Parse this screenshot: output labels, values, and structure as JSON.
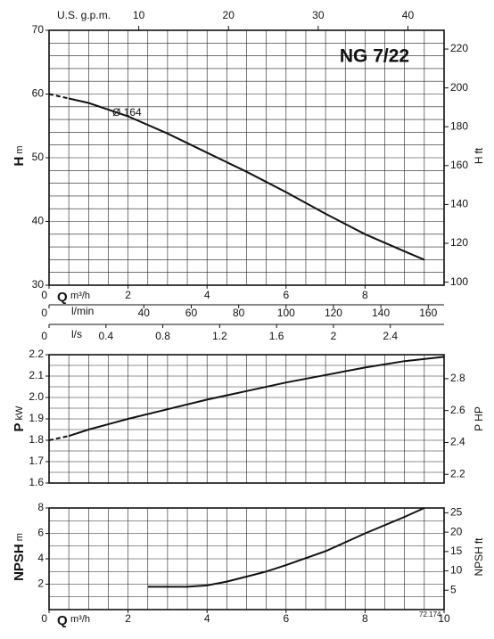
{
  "chart_data": [
    {
      "type": "line",
      "title": "NG 7/22",
      "curve_label": "Ø 164",
      "ylabel": "H",
      "yunit": "m",
      "y2label": "H",
      "y2unit": "ft",
      "xlim": [
        0,
        10
      ],
      "ylim": [
        30,
        70
      ],
      "yticks": [
        30,
        40,
        50,
        60,
        70
      ],
      "y2lim": [
        98.43,
        229.66
      ],
      "y2ticks": [
        100,
        120,
        140,
        160,
        180,
        200,
        220
      ],
      "grid": {
        "x": 0.5,
        "y": 2
      },
      "top_axis": {
        "label": "U.S. g.p.m.",
        "lim": [
          0,
          44.03
        ],
        "ticks": [
          10,
          20,
          30,
          40
        ]
      },
      "q_axes": [
        {
          "symbol": "Q",
          "unit": "m³/h",
          "lim": [
            0,
            10
          ],
          "ticks": [
            0,
            2,
            4,
            6,
            8
          ]
        },
        {
          "unit": "l/min",
          "lim": [
            0,
            166.67
          ],
          "ticks": [
            0,
            40,
            60,
            80,
            100,
            120,
            140,
            160
          ]
        },
        {
          "unit": "l/s",
          "lim": [
            0,
            2.778
          ],
          "ticks": [
            0,
            0.4,
            0.8,
            1.2,
            1.6,
            2,
            2.4
          ]
        }
      ],
      "series": [
        {
          "dash": true,
          "color": "#111111",
          "x": [
            0,
            0.5
          ],
          "values": [
            60,
            59.3
          ]
        },
        {
          "color": "#111111",
          "x": [
            0.5,
            1,
            2,
            3,
            4,
            5,
            6,
            7,
            8,
            9,
            9.5
          ],
          "values": [
            59.3,
            58.6,
            56.5,
            53.8,
            50.8,
            47.8,
            44.6,
            41.2,
            38.0,
            35.3,
            34.0
          ]
        }
      ]
    },
    {
      "type": "line",
      "ylabel": "P",
      "yunit": "kW",
      "y2label": "P",
      "y2unit": "HP",
      "xlim": [
        0,
        10
      ],
      "ylim": [
        1.6,
        2.2
      ],
      "yticks": [
        1.6,
        1.7,
        1.8,
        1.9,
        {
          "value": 2,
          "label": "2.0"
        },
        2.1,
        2.2
      ],
      "y2lim": [
        2.1457,
        2.9502
      ],
      "y2ticks": [
        2.2,
        2.4,
        2.6,
        2.8
      ],
      "grid": {
        "x": 0.5,
        "y": 0.05
      },
      "series": [
        {
          "dash": true,
          "color": "#111111",
          "x": [
            0,
            0.5
          ],
          "values": [
            1.8,
            1.82
          ]
        },
        {
          "color": "#111111",
          "x": [
            0.5,
            1,
            2,
            3,
            4,
            5,
            6,
            7,
            8,
            9,
            10
          ],
          "values": [
            1.82,
            1.85,
            1.9,
            1.945,
            1.99,
            2.03,
            2.07,
            2.105,
            2.14,
            2.17,
            2.19
          ]
        }
      ]
    },
    {
      "type": "line",
      "ylabel": "NPSH",
      "yunit": "m",
      "y2label": "NPSH",
      "y2unit": "ft",
      "xlim": [
        0,
        10
      ],
      "ylim": [
        0,
        8
      ],
      "yticks": [
        2,
        4,
        6,
        8
      ],
      "y2lim": [
        0,
        26.25
      ],
      "y2ticks": [
        5,
        10,
        15,
        20,
        25
      ],
      "grid": {
        "x": 0.5,
        "y": 1
      },
      "x_axis": {
        "symbol": "Q",
        "unit": "m³/h",
        "ticks": [
          0,
          2,
          4,
          6,
          8,
          10
        ]
      },
      "note": "72.174",
      "series": [
        {
          "color": "#111111",
          "x": [
            2.5,
            3,
            3.5,
            4,
            4.5,
            5,
            5.5,
            6,
            7,
            8,
            9,
            9.5
          ],
          "values": [
            1.8,
            1.8,
            1.8,
            1.9,
            2.2,
            2.6,
            3.0,
            3.5,
            4.6,
            6.0,
            7.3,
            8.0
          ]
        }
      ]
    }
  ]
}
